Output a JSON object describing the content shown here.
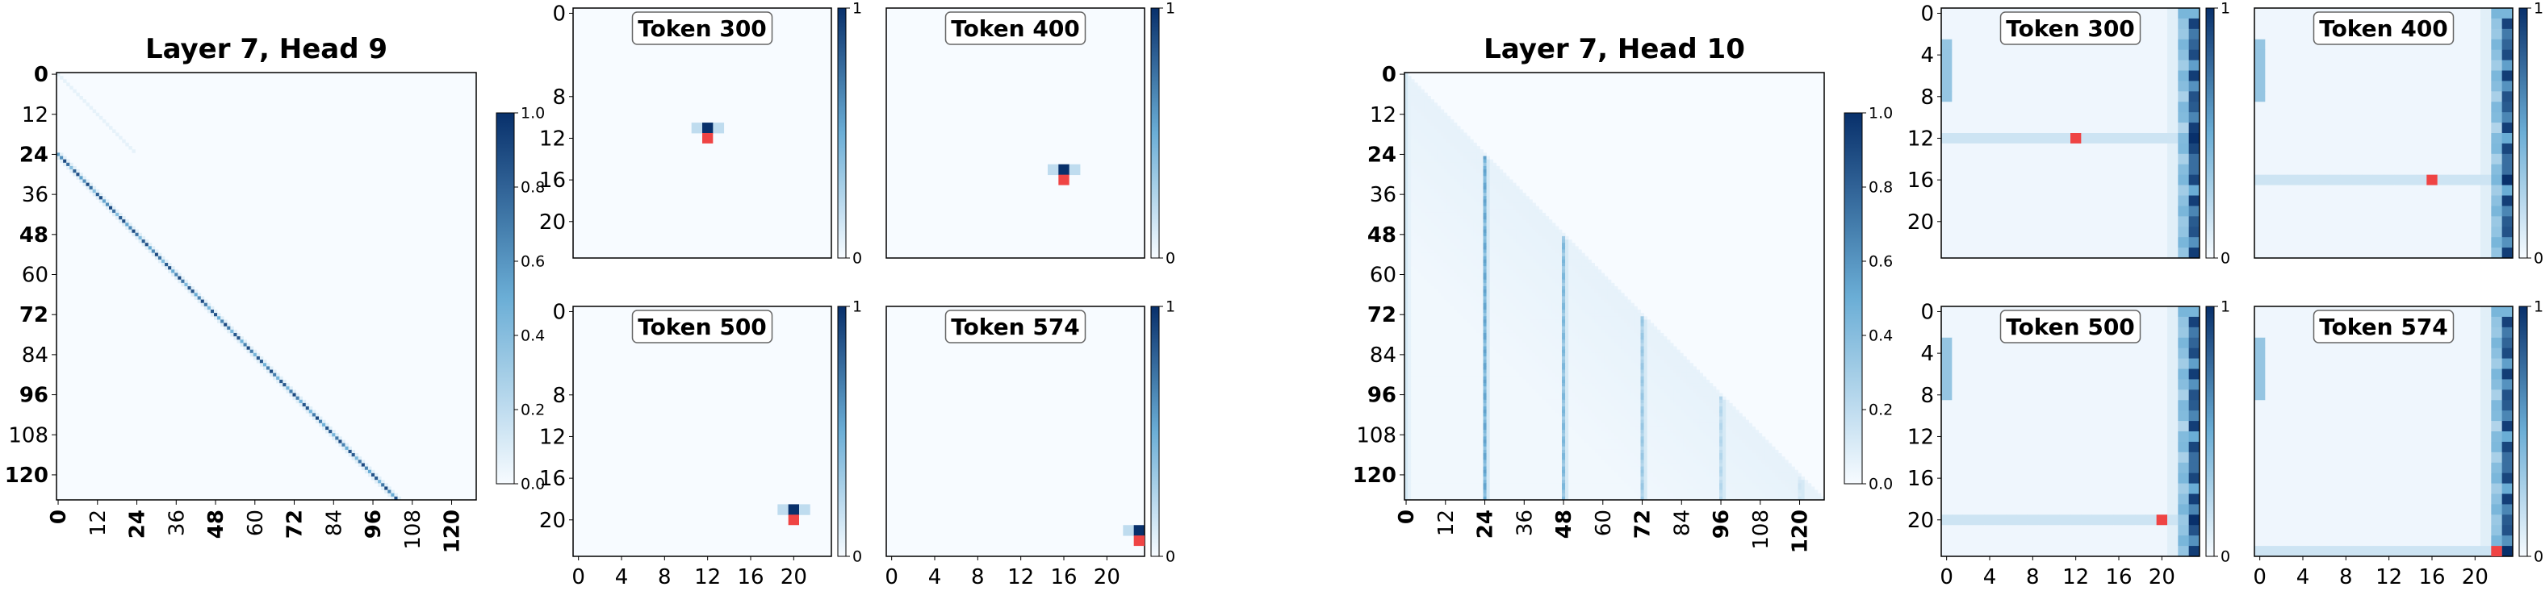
{
  "colors": {
    "cmap_low": "#f7fbff",
    "cmap_mid": "#6baed6",
    "cmap_high": "#08306b",
    "query_marker": "#ef4444",
    "frame": "#000000"
  },
  "chart_data": [
    {
      "type": "heatmap",
      "title": "Layer 7, Head 9",
      "pattern": "diagonal",
      "size": 128,
      "xticks": [
        "0",
        "12",
        "24",
        "36",
        "48",
        "60",
        "72",
        "84",
        "96",
        "108",
        "120"
      ],
      "yticks": [
        "0",
        "12",
        "24",
        "36",
        "48",
        "60",
        "72",
        "84",
        "96",
        "108",
        "120"
      ],
      "bold_ticks": [
        "0",
        "24",
        "48",
        "72",
        "96",
        "120"
      ],
      "colorbar": {
        "min": 0.0,
        "max": 1.0,
        "ticks": [
          "0.0",
          "0.2",
          "0.4",
          "0.6",
          "0.8",
          "1.0"
        ]
      },
      "grid": false,
      "legend": "none",
      "subplots": [
        {
          "title": "Token 300",
          "pattern": "point",
          "size": 24,
          "xticks": [],
          "yticks": [
            "0",
            "8",
            "12",
            "16",
            "20"
          ],
          "query": [
            12,
            12
          ],
          "colorbar_ticks": [
            "1",
            "0"
          ]
        },
        {
          "title": "Token 400",
          "pattern": "point",
          "size": 24,
          "xticks": [],
          "yticks": [],
          "query": [
            16,
            16
          ],
          "colorbar_ticks": [
            "1",
            "0"
          ]
        },
        {
          "title": "Token 500",
          "pattern": "point",
          "size": 24,
          "xticks": [
            "0",
            "4",
            "8",
            "12",
            "16",
            "20"
          ],
          "yticks": [
            "0",
            "8",
            "12",
            "16",
            "20"
          ],
          "query": [
            20,
            20
          ],
          "colorbar_ticks": [
            "1",
            "0"
          ]
        },
        {
          "title": "Token 574",
          "pattern": "point",
          "size": 24,
          "xticks": [
            "0",
            "4",
            "8",
            "12",
            "16",
            "20"
          ],
          "yticks": [],
          "query": [
            22,
            23
          ],
          "colorbar_ticks": [
            "1",
            "0"
          ]
        }
      ]
    },
    {
      "type": "heatmap",
      "title": "Layer 7, Head 10",
      "pattern": "sink",
      "size": 128,
      "xticks": [
        "0",
        "12",
        "24",
        "36",
        "48",
        "60",
        "72",
        "84",
        "96",
        "108",
        "120"
      ],
      "yticks": [
        "0",
        "12",
        "24",
        "36",
        "48",
        "60",
        "72",
        "84",
        "96",
        "108",
        "120"
      ],
      "bold_ticks": [
        "0",
        "24",
        "48",
        "72",
        "96",
        "120"
      ],
      "colorbar": {
        "min": 0.0,
        "max": 1.0,
        "ticks": [
          "0.0",
          "0.2",
          "0.4",
          "0.6",
          "0.8",
          "1.0"
        ]
      },
      "grid": false,
      "legend": "none",
      "subplots": [
        {
          "title": "Token 300",
          "pattern": "row",
          "size": 24,
          "xticks": [],
          "yticks": [
            "0",
            "4",
            "8",
            "12",
            "16",
            "20"
          ],
          "query": [
            12,
            12
          ],
          "colorbar_ticks": [
            "1",
            "0"
          ]
        },
        {
          "title": "Token 400",
          "pattern": "row",
          "size": 24,
          "xticks": [],
          "yticks": [],
          "query": [
            16,
            16
          ],
          "colorbar_ticks": [
            "1",
            "0"
          ]
        },
        {
          "title": "Token 500",
          "pattern": "row",
          "size": 24,
          "xticks": [
            "0",
            "4",
            "8",
            "12",
            "16",
            "20"
          ],
          "yticks": [
            "0",
            "4",
            "8",
            "12",
            "16",
            "20"
          ],
          "query": [
            20,
            20
          ],
          "colorbar_ticks": [
            "1",
            "0"
          ]
        },
        {
          "title": "Token 574",
          "pattern": "row",
          "size": 24,
          "xticks": [
            "0",
            "4",
            "8",
            "12",
            "16",
            "20"
          ],
          "yticks": [],
          "query": [
            23,
            22
          ],
          "colorbar_ticks": [
            "1",
            "0"
          ]
        }
      ]
    }
  ]
}
